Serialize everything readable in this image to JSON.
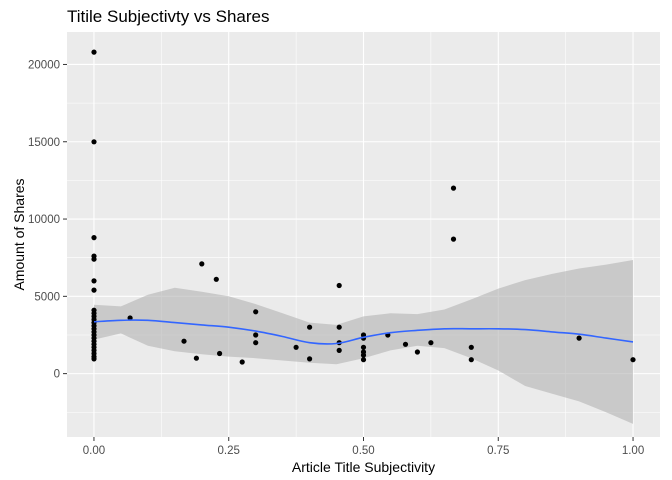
{
  "chart_data": {
    "type": "scatter",
    "title": "Titile Subjectivty vs Shares",
    "xlabel": "Article Title Subjectivity",
    "ylabel": "Amount of Shares",
    "xlim": [
      -0.05,
      1.05
    ],
    "ylim": [
      -4100,
      22100
    ],
    "x_ticks": [
      0,
      0.25,
      0.5,
      0.75,
      1
    ],
    "x_tick_labels": [
      "0.00",
      "0.25",
      "0.50",
      "0.75",
      "1.00"
    ],
    "y_ticks": [
      0,
      5000,
      10000,
      15000,
      20000
    ],
    "y_tick_labels": [
      "0",
      "5000",
      "10000",
      "15000",
      "20000"
    ],
    "grid": true,
    "colors": {
      "panel": "#ebebeb",
      "grid": "#ffffff",
      "points": "#000000",
      "smooth_line": "#3366ff",
      "confidence_band": "#b3b3b3"
    },
    "points": [
      {
        "x": 0,
        "y": 20800
      },
      {
        "x": 0,
        "y": 15000
      },
      {
        "x": 0,
        "y": 8800
      },
      {
        "x": 0,
        "y": 7600
      },
      {
        "x": 0,
        "y": 7400
      },
      {
        "x": 0,
        "y": 6000
      },
      {
        "x": 0,
        "y": 5400
      },
      {
        "x": 0,
        "y": 4100
      },
      {
        "x": 0,
        "y": 3900
      },
      {
        "x": 0,
        "y": 3700
      },
      {
        "x": 0,
        "y": 3500
      },
      {
        "x": 0,
        "y": 3300
      },
      {
        "x": 0,
        "y": 3100
      },
      {
        "x": 0,
        "y": 2900
      },
      {
        "x": 0,
        "y": 2700
      },
      {
        "x": 0,
        "y": 2500
      },
      {
        "x": 0,
        "y": 2300
      },
      {
        "x": 0,
        "y": 2100
      },
      {
        "x": 0,
        "y": 1900
      },
      {
        "x": 0,
        "y": 1700
      },
      {
        "x": 0,
        "y": 1500
      },
      {
        "x": 0,
        "y": 1300
      },
      {
        "x": 0,
        "y": 1100
      },
      {
        "x": 0,
        "y": 950
      },
      {
        "x": 0.067,
        "y": 3600
      },
      {
        "x": 0.167,
        "y": 2100
      },
      {
        "x": 0.19,
        "y": 1000
      },
      {
        "x": 0.2,
        "y": 7100
      },
      {
        "x": 0.227,
        "y": 6100
      },
      {
        "x": 0.233,
        "y": 1300
      },
      {
        "x": 0.275,
        "y": 750
      },
      {
        "x": 0.3,
        "y": 4000
      },
      {
        "x": 0.3,
        "y": 2500
      },
      {
        "x": 0.3,
        "y": 2000
      },
      {
        "x": 0.375,
        "y": 1700
      },
      {
        "x": 0.4,
        "y": 3000
      },
      {
        "x": 0.4,
        "y": 950
      },
      {
        "x": 0.455,
        "y": 5700
      },
      {
        "x": 0.455,
        "y": 3000
      },
      {
        "x": 0.455,
        "y": 2000
      },
      {
        "x": 0.455,
        "y": 1500
      },
      {
        "x": 0.5,
        "y": 2500
      },
      {
        "x": 0.5,
        "y": 2300
      },
      {
        "x": 0.5,
        "y": 1700
      },
      {
        "x": 0.5,
        "y": 1400
      },
      {
        "x": 0.5,
        "y": 1200
      },
      {
        "x": 0.5,
        "y": 900
      },
      {
        "x": 0.545,
        "y": 2500
      },
      {
        "x": 0.578,
        "y": 1900
      },
      {
        "x": 0.6,
        "y": 1400
      },
      {
        "x": 0.625,
        "y": 2000
      },
      {
        "x": 0.667,
        "y": 12000
      },
      {
        "x": 0.667,
        "y": 8700
      },
      {
        "x": 0.7,
        "y": 1700
      },
      {
        "x": 0.7,
        "y": 900
      },
      {
        "x": 0.9,
        "y": 2300
      },
      {
        "x": 1.0,
        "y": 900
      }
    ],
    "smooth": {
      "x": [
        0.0,
        0.05,
        0.1,
        0.15,
        0.2,
        0.25,
        0.3,
        0.35,
        0.4,
        0.45,
        0.5,
        0.55,
        0.6,
        0.65,
        0.7,
        0.75,
        0.8,
        0.85,
        0.9,
        0.95,
        1.0
      ],
      "y": [
        3350,
        3450,
        3450,
        3300,
        3150,
        3000,
        2750,
        2400,
        2000,
        1950,
        2350,
        2650,
        2800,
        2900,
        2900,
        2900,
        2850,
        2700,
        2550,
        2300,
        2050
      ],
      "lower": [
        2200,
        2600,
        1800,
        1450,
        1250,
        1100,
        1000,
        850,
        700,
        600,
        1000,
        1500,
        1800,
        1650,
        1000,
        200,
        -800,
        -1300,
        -1800,
        -2500,
        -3250
      ],
      "upper": [
        4450,
        4350,
        5100,
        5550,
        5300,
        5000,
        4500,
        3900,
        3300,
        3150,
        3700,
        3900,
        3850,
        4150,
        4800,
        5500,
        6050,
        6450,
        6800,
        7050,
        7350
      ]
    }
  }
}
